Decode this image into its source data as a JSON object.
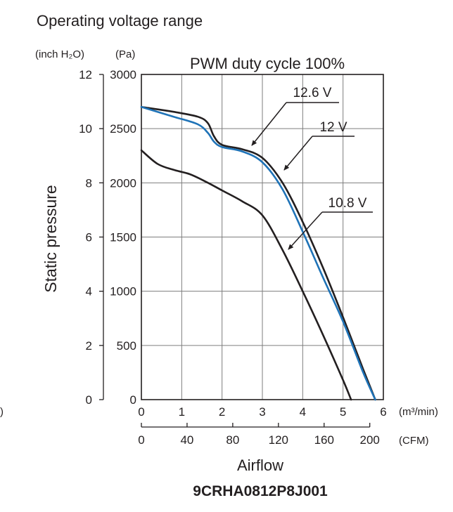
{
  "header": {
    "title": "Operating voltage range"
  },
  "chart_data": {
    "type": "line",
    "title": "PWM duty cycle 100%",
    "model": "9CRHA0812P8J001",
    "xlabel": "Airflow",
    "ylabel": "Static pressure",
    "x_unit_primary": "(m³/min)",
    "x_unit_secondary": "(CFM)",
    "y_unit_left": "(inch H₂O)",
    "y_unit_right": "(Pa)",
    "stray_unit": ")",
    "xlim": [
      0,
      6
    ],
    "ylim": [
      0,
      3000
    ],
    "x_ticks": [
      "0",
      "1",
      "2",
      "3",
      "4",
      "5",
      "6"
    ],
    "x_ticks_cfm": [
      "0",
      "40",
      "80",
      "120",
      "160",
      "200"
    ],
    "cfm_values": [
      0,
      40,
      80,
      120,
      160,
      200
    ],
    "y_ticks_pa": [
      "0",
      "500",
      "1000",
      "1500",
      "2000",
      "2500",
      "3000"
    ],
    "y_ticks_inch": [
      "0",
      "2",
      "4",
      "6",
      "8",
      "10",
      "12"
    ],
    "grid": true,
    "series": [
      {
        "name": "12.6 V",
        "color": "#231f20",
        "x": [
          0,
          0.8,
          1.4,
          1.65,
          1.8,
          2.0,
          2.5,
          3.0,
          3.5,
          4.0,
          4.5,
          5.0,
          5.5,
          5.8
        ],
        "y": [
          2700,
          2655,
          2610,
          2550,
          2430,
          2350,
          2310,
          2230,
          2000,
          1640,
          1220,
          760,
          280,
          0
        ]
      },
      {
        "name": "12 V",
        "color": "#1f73b7",
        "x": [
          0,
          0.8,
          1.4,
          1.65,
          1.8,
          2.0,
          2.5,
          3.0,
          3.5,
          4.0,
          4.5,
          5.0,
          5.5,
          5.8
        ],
        "y": [
          2700,
          2610,
          2540,
          2460,
          2380,
          2330,
          2290,
          2190,
          1940,
          1550,
          1130,
          720,
          250,
          0
        ]
      },
      {
        "name": "10.8 V",
        "color": "#231f20",
        "x": [
          0,
          0.4,
          0.8,
          1.2,
          1.6,
          2.0,
          2.5,
          3.0,
          3.5,
          4.0,
          4.5,
          5.0,
          5.2
        ],
        "y": [
          2300,
          2175,
          2120,
          2080,
          2010,
          1930,
          1830,
          1700,
          1380,
          1000,
          600,
          180,
          0
        ]
      }
    ],
    "annotations": [
      {
        "text": "12.6 V",
        "series": 0
      },
      {
        "text": "12 V",
        "series": 1
      },
      {
        "text": "10.8 V",
        "series": 2
      }
    ]
  }
}
